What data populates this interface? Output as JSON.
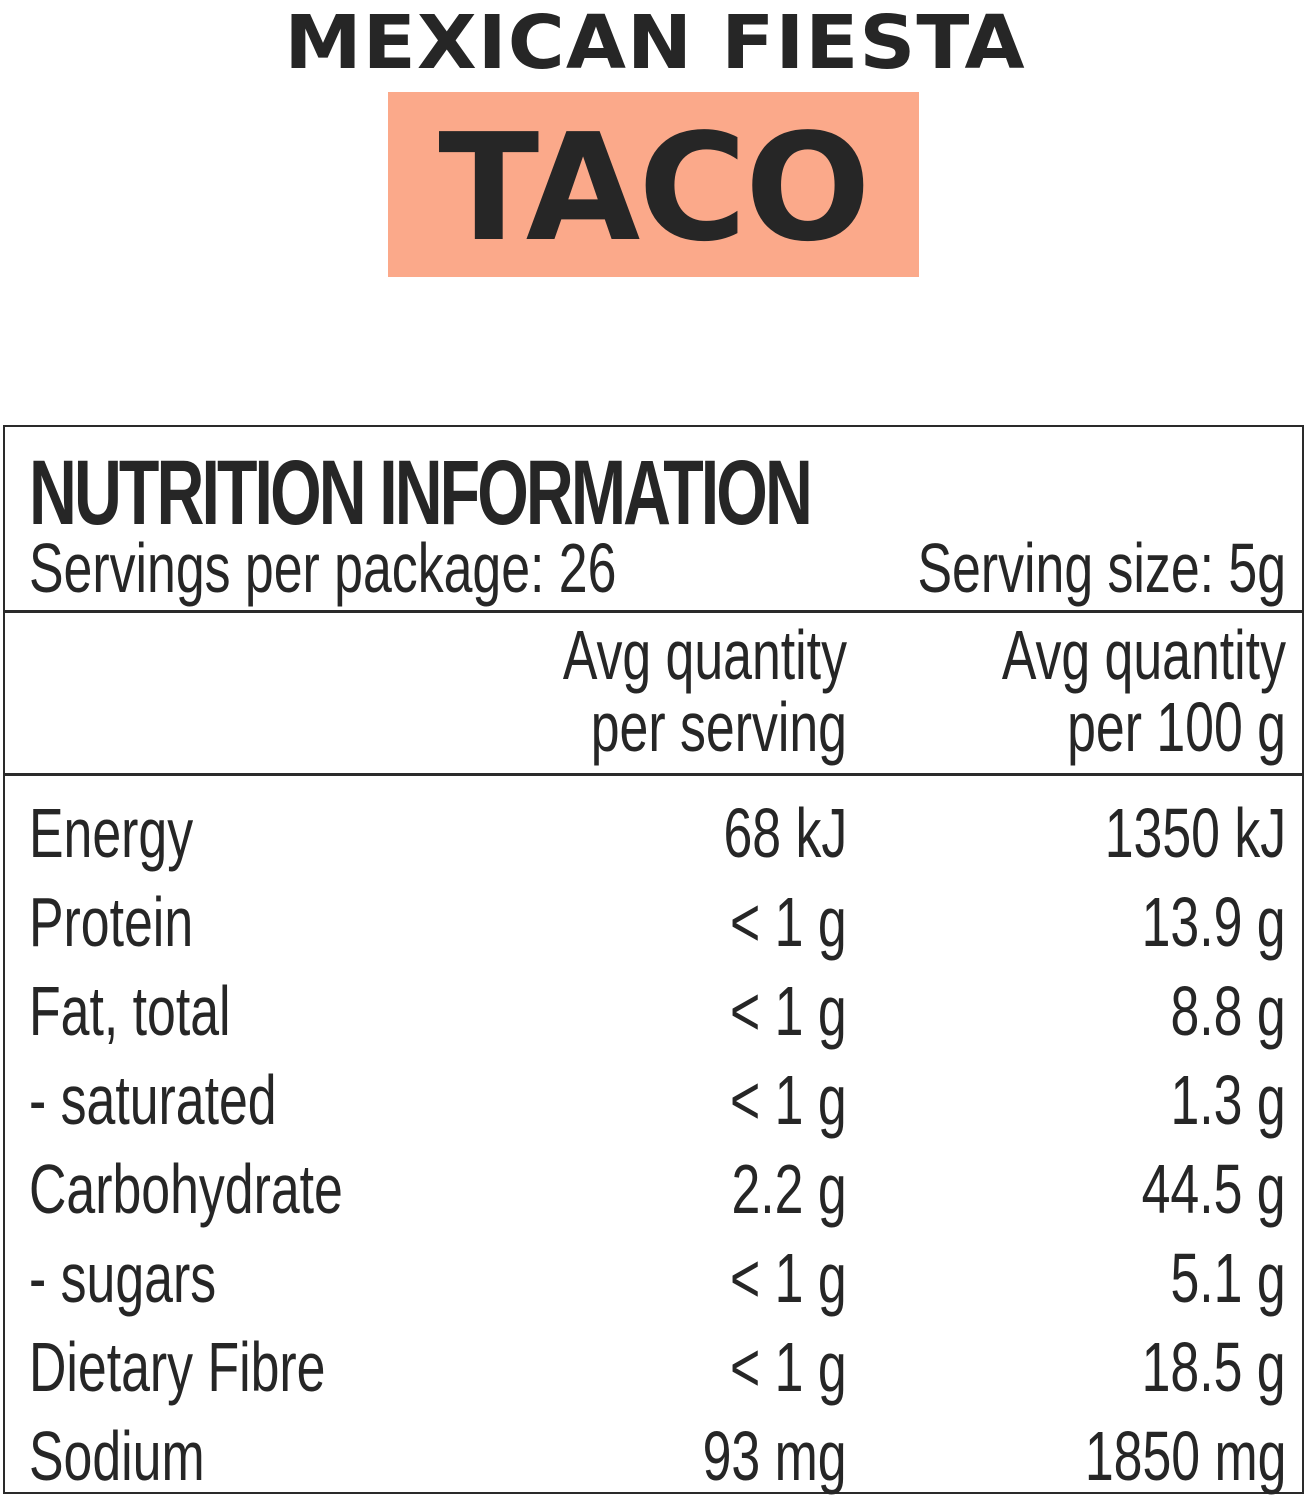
{
  "header": {
    "brand": "MEXICAN FIESTA",
    "product": "TACO",
    "product_box_color": "#fba98a"
  },
  "nutrition": {
    "title": "NUTRITION INFORMATION",
    "servings_per_package": "Servings per package: 26",
    "serving_size": "Serving size: 5g",
    "columns": [
      {
        "line1": "Avg quantity",
        "line2": "per serving"
      },
      {
        "line1": "Avg quantity",
        "line2": "per 100 g"
      }
    ],
    "rows": [
      {
        "label": "Energy",
        "per_serving": "68 kJ",
        "per_100g": "1350 kJ"
      },
      {
        "label": "Protein",
        "per_serving": "< 1 g",
        "per_100g": "13.9 g"
      },
      {
        "label": "Fat, total",
        "per_serving": "< 1 g",
        "per_100g": "8.8 g"
      },
      {
        "label": "- saturated",
        "per_serving": "< 1 g",
        "per_100g": "1.3 g"
      },
      {
        "label": "Carbohydrate",
        "per_serving": "2.2 g",
        "per_100g": "44.5 g"
      },
      {
        "label": "- sugars",
        "per_serving": "< 1 g",
        "per_100g": "5.1 g"
      },
      {
        "label": "Dietary Fibre",
        "per_serving": "< 1 g",
        "per_100g": "18.5 g"
      },
      {
        "label": "Sodium",
        "per_serving": "93 mg",
        "per_100g": "1850 mg"
      }
    ]
  }
}
